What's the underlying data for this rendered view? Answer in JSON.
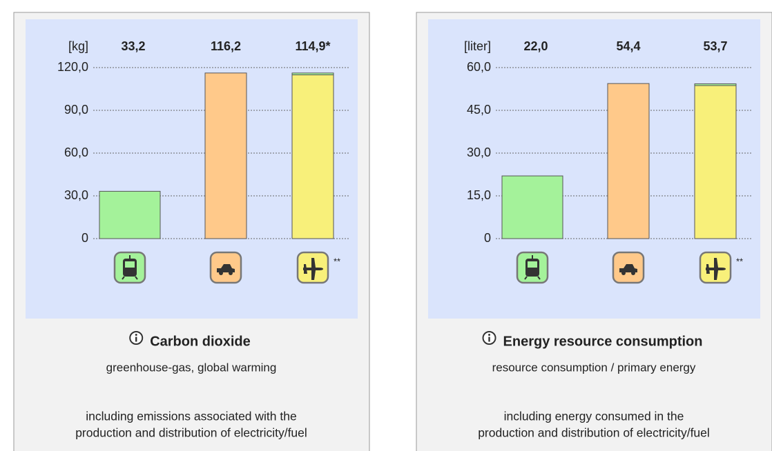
{
  "chart_data": [
    {
      "type": "bar",
      "unit_label": "[kg]",
      "title": "Carbon dioxide",
      "subtitle": "greenhouse-gas, global warming",
      "note": [
        "including emissions associated with the",
        "production and distribution of electricity/fuel"
      ],
      "values": [
        33.2,
        116.2,
        114.9
      ],
      "value_labels": [
        "33,2",
        "116,2",
        "114,9*"
      ],
      "cap_values": [
        null,
        null,
        1.3
      ],
      "cap_color": "#a4f29a",
      "colors": [
        "#a4f29a",
        "#ffc98a",
        "#f8f07a"
      ],
      "icon_note": "**",
      "ylim": [
        0,
        120
      ],
      "yticks": [
        0,
        {
          "value": 30,
          "label": "30,0"
        },
        {
          "value": 60,
          "label": "60,0"
        },
        {
          "value": 90,
          "label": "90,0"
        },
        {
          "value": 120,
          "label": "120,0"
        }
      ],
      "grid": true
    },
    {
      "type": "bar",
      "unit_label": "[liter]",
      "title": "Energy resource consumption",
      "subtitle": "resource consumption / primary energy",
      "note": [
        "including energy consumed in the",
        "production and distribution of electricity/fuel"
      ],
      "values": [
        22.0,
        54.4,
        53.7
      ],
      "value_labels": [
        "22,0",
        "54,4",
        "53,7"
      ],
      "cap_values": [
        null,
        null,
        0.6
      ],
      "cap_color": "#a4f29a",
      "colors": [
        "#a4f29a",
        "#ffc98a",
        "#f8f07a"
      ],
      "icon_note": "**",
      "ylim": [
        0,
        60
      ],
      "yticks": [
        0,
        {
          "value": 15,
          "label": "15,0"
        },
        {
          "value": 30,
          "label": "30,0"
        },
        {
          "value": 45,
          "label": "45,0"
        },
        {
          "value": 60,
          "label": "60,0"
        }
      ],
      "grid": true
    }
  ]
}
